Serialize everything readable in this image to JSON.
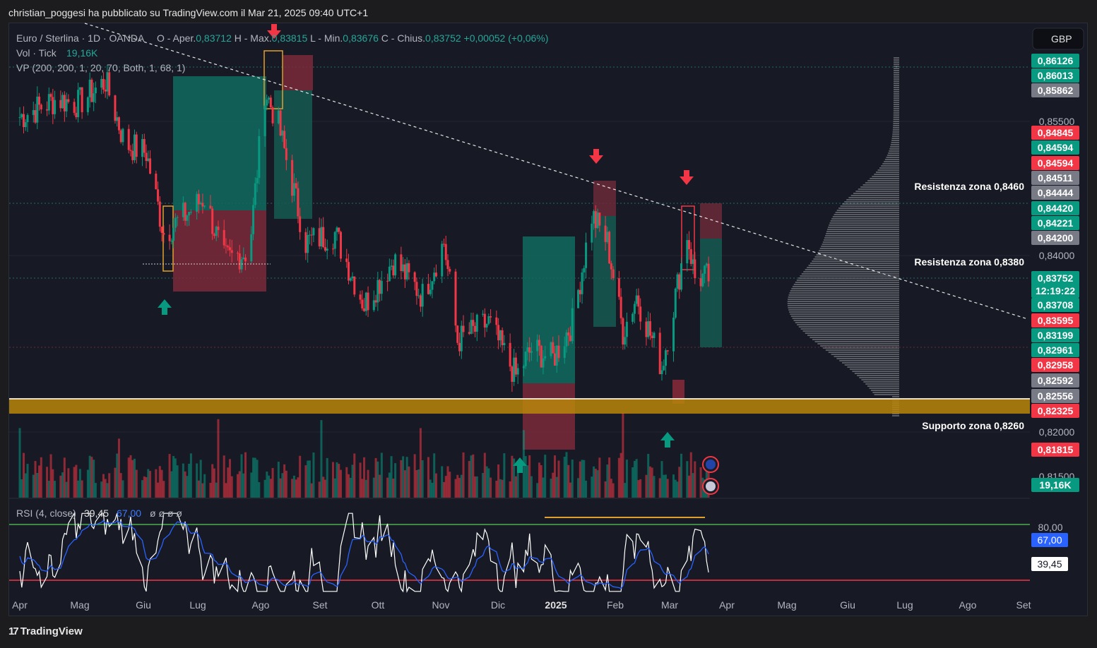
{
  "caption": "christian_poggesi ha pubblicato su TradingView.com il Mar 21, 2025 09:40 UTC+1",
  "header": {
    "symbol": "Euro / Sterlina · 1D · OANDA",
    "ohlc": [
      {
        "label": "O - Aper.",
        "value": "0,83712"
      },
      {
        "label": "H - Max.",
        "value": "0,83815"
      },
      {
        "label": "L - Min.",
        "value": "0,83676"
      },
      {
        "label": "C - Chius.",
        "value": "0,83752"
      }
    ],
    "change": "+0,00052 (+0,06%)",
    "vol_label": "Vol · Tick",
    "vol_value": "19,16K",
    "vp_label": "VP (200, 200, 1, 20, 70, Both, 1, 68, 1)"
  },
  "currency_button": "GBP",
  "price_ticks": [
    "0,85500",
    "0,84000",
    "0,82000",
    "0,81500"
  ],
  "price_badges": [
    {
      "text": "0,86126",
      "color": "#089981",
      "price": 0.86126
    },
    {
      "text": "0,86013",
      "color": "#089981",
      "price": 0.86013
    },
    {
      "text": "0,85862",
      "color": "#787b86",
      "price": 0.85862
    },
    {
      "text": "0,84845",
      "color": "#f23645",
      "price": 0.84845
    },
    {
      "text": "0,84594",
      "color": "#089981",
      "price": 0.84594
    },
    {
      "text": "0,84594",
      "color": "#f23645",
      "price": 0.84594
    },
    {
      "text": "0,84511",
      "color": "#787b86",
      "price": 0.84511
    },
    {
      "text": "0,84444",
      "color": "#787b86",
      "price": 0.84444
    },
    {
      "text": "0,84420",
      "color": "#089981",
      "price": 0.8442
    },
    {
      "text": "0,84221",
      "color": "#089981",
      "price": 0.84221
    },
    {
      "text": "0,84200",
      "color": "#787b86",
      "price": 0.842
    },
    {
      "text": "0,83752",
      "color": "#089981",
      "price": 0.83752
    },
    {
      "text": "12:19:22",
      "color": "#089981",
      "price": 0.83752
    },
    {
      "text": "0,83708",
      "color": "#089981",
      "price": 0.83708
    },
    {
      "text": "0,83595",
      "color": "#f23645",
      "price": 0.83595
    },
    {
      "text": "0,83199",
      "color": "#089981",
      "price": 0.83199
    },
    {
      "text": "0,82961",
      "color": "#089981",
      "price": 0.82961
    },
    {
      "text": "0,82958",
      "color": "#f23645",
      "price": 0.82958
    },
    {
      "text": "0,82592",
      "color": "#787b86",
      "price": 0.82592
    },
    {
      "text": "0,82556",
      "color": "#787b86",
      "price": 0.82556
    },
    {
      "text": "0,82325",
      "color": "#f23645",
      "price": 0.82325
    },
    {
      "text": "0,81815",
      "color": "#f23645",
      "price": 0.81815
    },
    {
      "text": "19,16K",
      "color": "#089981",
      "price": 0.8151
    }
  ],
  "annotations": [
    {
      "text": "Resistenza zona 0,8460",
      "price": 0.846
    },
    {
      "text": "Resistenza zona 0,8380",
      "price": 0.838
    },
    {
      "text": "Supporto zona 0,8260",
      "price": 0.826
    }
  ],
  "rsi": {
    "label": "RSI (4, close)",
    "value": "39,45",
    "ma_value": "67,00",
    "empty": "ø ø ø ø",
    "upper_text": "80,00",
    "badge_ma": "67,00",
    "badge_value": "39,45",
    "upper": 80,
    "lower": 20
  },
  "x_labels": [
    "Apr",
    "Mag",
    "Giu",
    "Lug",
    "Ago",
    "Set",
    "Ott",
    "Nov",
    "Dic",
    "2025",
    "Feb",
    "Mar",
    "Apr",
    "Mag",
    "Giu",
    "Lug",
    "Ago",
    "Set"
  ],
  "footer": {
    "logo": "17",
    "brand": "TradingView"
  },
  "colors": {
    "up": "#089981",
    "down": "#f23645",
    "bg": "#171a24",
    "support": "#b8860b",
    "rsi_line": "#ffffff",
    "rsi_ma": "#2962ff"
  },
  "chart_data": {
    "type": "candlestick",
    "title": "Euro / Sterlina · 1D · OANDA",
    "y_range": [
      0.8135,
      0.8638
    ],
    "rsi_range": [
      0,
      100
    ],
    "close_path": [
      {
        "date": "2024-04-01",
        "close": 0.8555
      },
      {
        "date": "2024-04-20",
        "close": 0.8575
      },
      {
        "date": "2024-05-01",
        "close": 0.857
      },
      {
        "date": "2024-05-15",
        "close": 0.8595
      },
      {
        "date": "2024-05-25",
        "close": 0.8525
      },
      {
        "date": "2024-06-05",
        "close": 0.8515
      },
      {
        "date": "2024-06-14",
        "close": 0.8425
      },
      {
        "date": "2024-06-25",
        "close": 0.8445
      },
      {
        "date": "2024-07-05",
        "close": 0.8465
      },
      {
        "date": "2024-07-15",
        "close": 0.8395
      },
      {
        "date": "2024-07-28",
        "close": 0.8405
      },
      {
        "date": "2024-08-05",
        "close": 0.8585
      },
      {
        "date": "2024-08-12",
        "close": 0.8545
      },
      {
        "date": "2024-08-26",
        "close": 0.8415
      },
      {
        "date": "2024-09-10",
        "close": 0.8425
      },
      {
        "date": "2024-09-25",
        "close": 0.8345
      },
      {
        "date": "2024-10-10",
        "close": 0.8395
      },
      {
        "date": "2024-10-25",
        "close": 0.8355
      },
      {
        "date": "2024-11-05",
        "close": 0.8415
      },
      {
        "date": "2024-11-12",
        "close": 0.8305
      },
      {
        "date": "2024-11-28",
        "close": 0.8325
      },
      {
        "date": "2024-12-12",
        "close": 0.8265
      },
      {
        "date": "2024-12-20",
        "close": 0.8295
      },
      {
        "date": "2024-12-31",
        "close": 0.8285
      },
      {
        "date": "2025-01-10",
        "close": 0.8325
      },
      {
        "date": "2025-01-20",
        "close": 0.8445
      },
      {
        "date": "2025-01-28",
        "close": 0.8415
      },
      {
        "date": "2025-02-05",
        "close": 0.8315
      },
      {
        "date": "2025-02-12",
        "close": 0.8355
      },
      {
        "date": "2025-02-25",
        "close": 0.8275
      },
      {
        "date": "2025-03-04",
        "close": 0.8355
      },
      {
        "date": "2025-03-10",
        "close": 0.8425
      },
      {
        "date": "2025-03-14",
        "close": 0.8375
      },
      {
        "date": "2025-03-21",
        "close": 0.83752
      }
    ]
  }
}
